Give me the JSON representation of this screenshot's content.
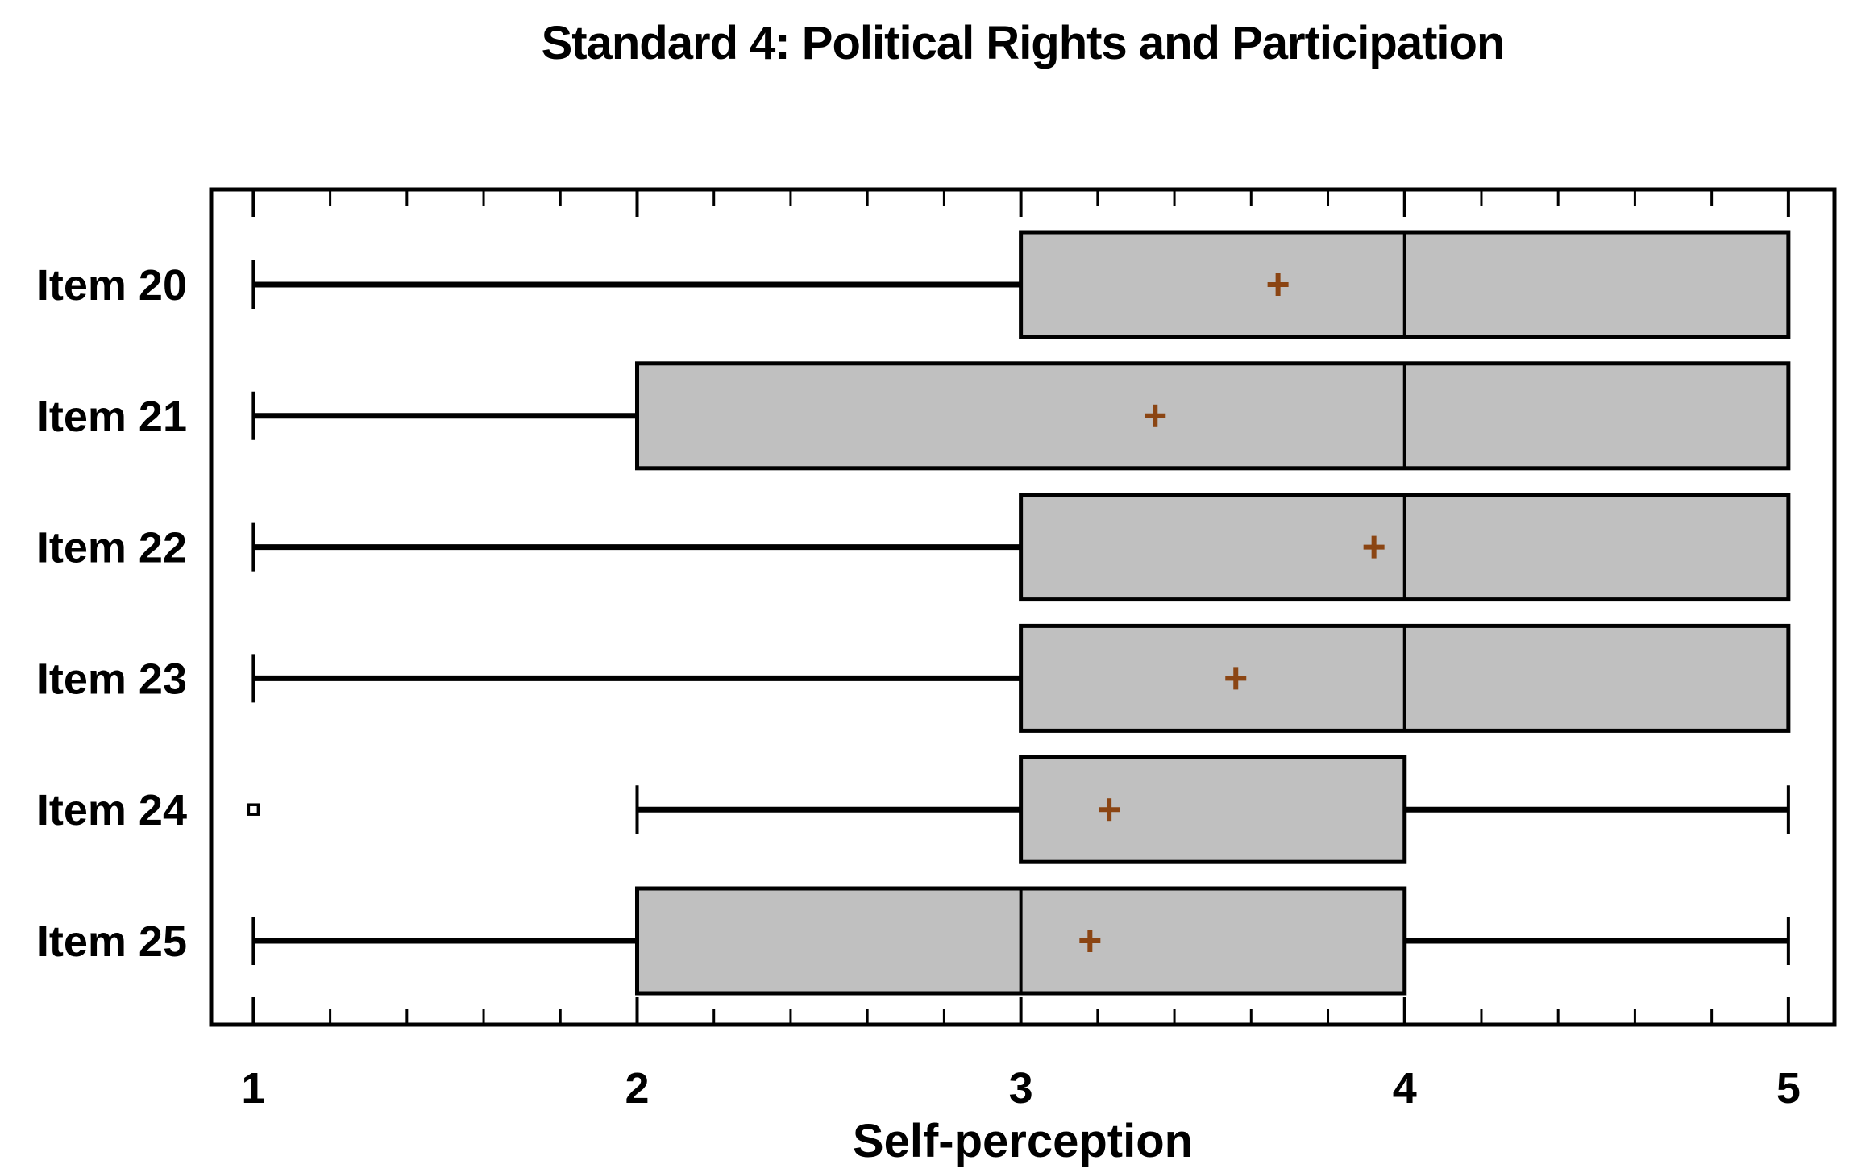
{
  "figure": {
    "background_color": "#ffffff",
    "text_color": "#000000"
  },
  "chart_data": {
    "type": "boxplot",
    "orientation": "horizontal",
    "title": "Standard 4: Political Rights and Participation",
    "xlabel": "Self-perception",
    "ylabel": "",
    "xlim": [
      0.89,
      5.12
    ],
    "x_ticks": [
      1,
      2,
      3,
      4,
      5
    ],
    "x_tick_labels": [
      "1",
      "2",
      "3",
      "4",
      "5"
    ],
    "x_minor_tick_step": 0.2,
    "grid": false,
    "legend": "none",
    "categories": [
      "Item 20",
      "Item 21",
      "Item 22",
      "Item 23",
      "Item 24",
      "Item 25"
    ],
    "series": [
      {
        "name": "Item 20",
        "whisker_low": 1,
        "q1": 3,
        "median": 4,
        "q3": 5,
        "whisker_high": 5,
        "mean": 3.67,
        "outliers": []
      },
      {
        "name": "Item 21",
        "whisker_low": 1,
        "q1": 2,
        "median": 4,
        "q3": 5,
        "whisker_high": 5,
        "mean": 3.35,
        "outliers": []
      },
      {
        "name": "Item 22",
        "whisker_low": 1,
        "q1": 3,
        "median": 4,
        "q3": 5,
        "whisker_high": 5,
        "mean": 3.92,
        "outliers": []
      },
      {
        "name": "Item 23",
        "whisker_low": 1,
        "q1": 3,
        "median": 4,
        "q3": 5,
        "whisker_high": 5,
        "mean": 3.56,
        "outliers": []
      },
      {
        "name": "Item 24",
        "whisker_low": 2,
        "q1": 3,
        "median": null,
        "q3": 4,
        "whisker_high": 5,
        "mean": 3.23,
        "outliers": [
          1
        ]
      },
      {
        "name": "Item 25",
        "whisker_low": 1,
        "q1": 2,
        "median": 3,
        "q3": 4,
        "whisker_high": 5,
        "mean": 3.18,
        "outliers": []
      }
    ],
    "colors": {
      "box_fill": "#c0c0c0",
      "box_border": "#000000",
      "whisker": "#000000",
      "median_line": "#000000",
      "mean_marker": "#8b4513",
      "outlier_fill": "#ffffff",
      "outlier_border": "#000000",
      "axis": "#000000"
    },
    "markers": {
      "mean_shape": "plus",
      "outlier_shape": "square"
    }
  }
}
